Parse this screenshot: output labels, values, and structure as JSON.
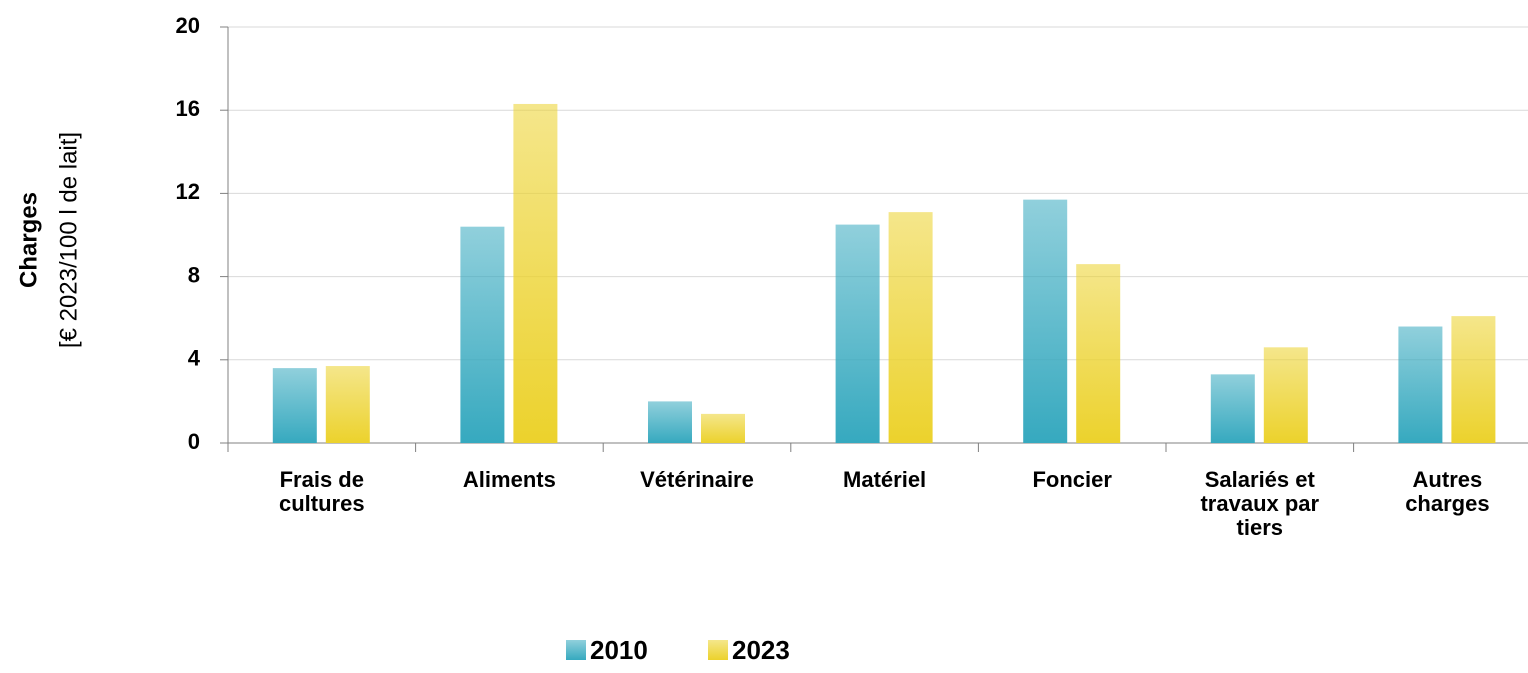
{
  "chart_data": {
    "type": "bar",
    "y_label_main": "Charges",
    "y_label_unit": "[€ 2023/100 l de lait]",
    "categories": [
      "Frais de cultures",
      "Aliments",
      "Vétérinaire",
      "Matériel",
      "Foncier",
      "Salariés et travaux par tiers",
      "Autres charges"
    ],
    "series": [
      {
        "name": "2010",
        "color": "#36a9bf",
        "values": [
          3.6,
          10.4,
          2.0,
          10.5,
          11.7,
          3.3,
          5.6
        ]
      },
      {
        "name": "2023",
        "color": "#ecd22c",
        "values": [
          3.7,
          16.3,
          1.4,
          11.1,
          8.6,
          4.6,
          6.1
        ]
      }
    ],
    "ylim": [
      0,
      20
    ],
    "yticks": [
      0,
      4,
      8,
      12,
      16,
      20
    ],
    "grid": true,
    "legend": "bottom"
  }
}
